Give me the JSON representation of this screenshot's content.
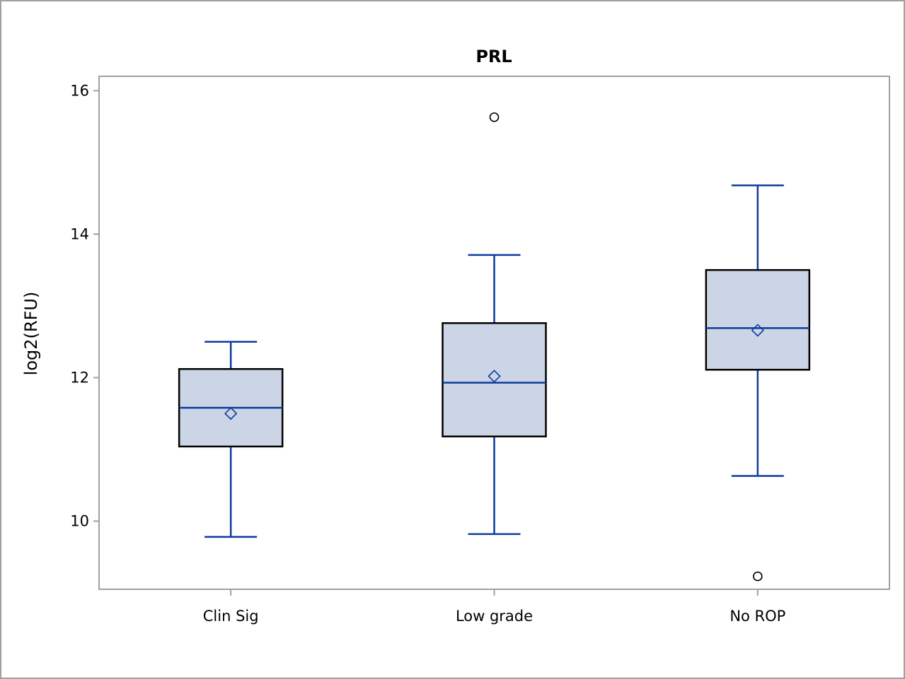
{
  "chart_data": {
    "type": "box",
    "title": "PRL",
    "xlabel": "",
    "ylabel": "log2(RFU)",
    "categories": [
      "Clin Sig",
      "Low grade",
      "No ROP"
    ],
    "ylim": [
      9.05,
      16.2
    ],
    "yticks": [
      10,
      12,
      14,
      16
    ],
    "grid": false,
    "colors": {
      "box_fill": "#cbd5e5",
      "box_edge": "#000000",
      "whisker": "#0d3a9e",
      "median": "#0d3a9e",
      "mean_marker": "#0d3a9e",
      "outlier": "#000000",
      "frame": "#a0a0a0"
    },
    "boxes": [
      {
        "category": "Clin Sig",
        "whisker_low": 9.78,
        "q1": 11.04,
        "median": 11.58,
        "q3": 12.12,
        "whisker_high": 12.5,
        "mean": 11.5,
        "outliers": []
      },
      {
        "category": "Low grade",
        "whisker_low": 9.82,
        "q1": 11.18,
        "median": 11.93,
        "q3": 12.76,
        "whisker_high": 13.71,
        "mean": 12.02,
        "outliers": [
          15.63
        ]
      },
      {
        "category": "No ROP",
        "whisker_low": 10.63,
        "q1": 12.11,
        "median": 12.69,
        "q3": 13.5,
        "whisker_high": 14.68,
        "mean": 12.66,
        "outliers": [
          9.23
        ]
      }
    ]
  }
}
